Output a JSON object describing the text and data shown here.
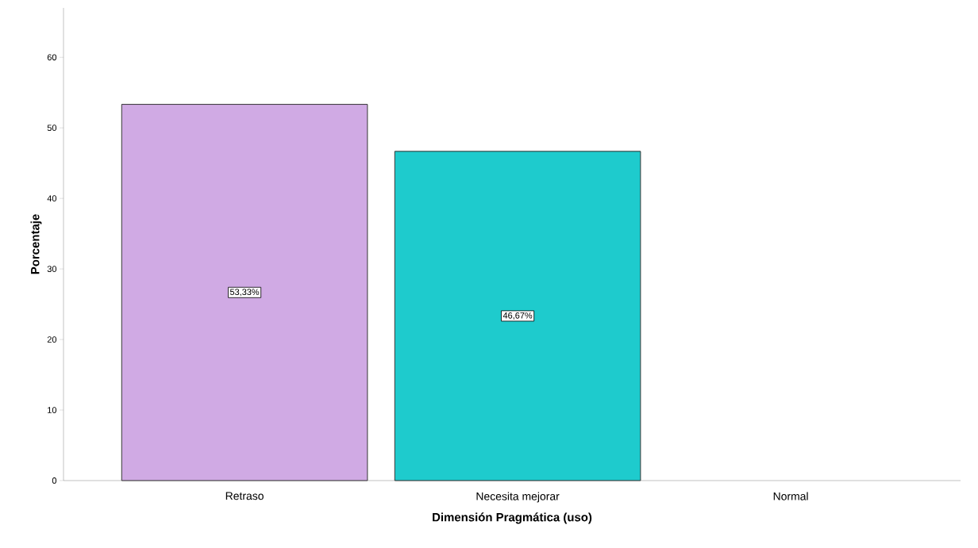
{
  "chart_data": {
    "type": "bar",
    "xlabel": "Dimensión Pragmática (uso)",
    "ylabel": "Porcentaje",
    "categories": [
      "Retraso",
      "Necesita mejorar",
      "Normal"
    ],
    "values": [
      53.33,
      46.67,
      0
    ],
    "colors": [
      "#d0aae4",
      "#1ecbcd",
      "#1ecbcd"
    ],
    "value_labels": [
      "53,33%",
      "46,67%",
      null
    ],
    "ylim": [
      0,
      67
    ],
    "yticks": [
      0,
      10,
      20,
      30,
      40,
      50,
      60
    ]
  }
}
